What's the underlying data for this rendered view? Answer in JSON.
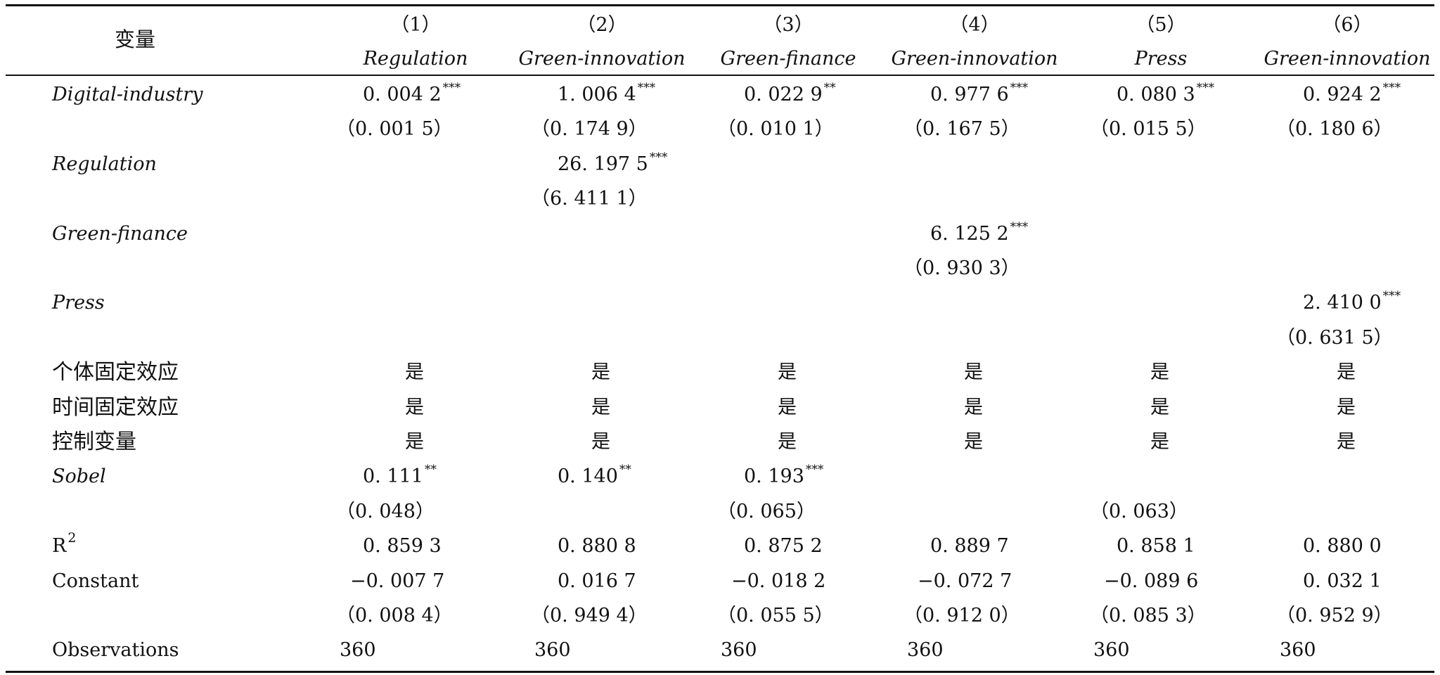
{
  "header": {
    "variable_label": "变量",
    "columns": [
      {
        "num": "（1）",
        "name": "Regulation"
      },
      {
        "num": "（2）",
        "name": "Green-innovation"
      },
      {
        "num": "（3）",
        "name": "Green-finance"
      },
      {
        "num": "（4）",
        "name": "Green-innovation"
      },
      {
        "num": "（5）",
        "name": "Press"
      },
      {
        "num": "（6）",
        "name": "Green-innovation"
      }
    ]
  },
  "rows": [
    {
      "label": "Digital-industry",
      "italic": true,
      "cells": [
        {
          "v": "0. 004 2",
          "s": "***"
        },
        {
          "v": "1. 006 4",
          "s": "***"
        },
        {
          "v": "0. 022 9",
          "s": "**"
        },
        {
          "v": "0. 977 6",
          "s": "***"
        },
        {
          "v": "0. 080 3",
          "s": "***"
        },
        {
          "v": "0. 924 2",
          "s": "***"
        }
      ]
    },
    {
      "label": "",
      "cells": [
        {
          "v": "（0. 001 5）"
        },
        {
          "v": "（0. 174 9）"
        },
        {
          "v": "（0. 010 1）"
        },
        {
          "v": "（0. 167 5）"
        },
        {
          "v": "（0. 015 5）"
        },
        {
          "v": "（0. 180 6）"
        }
      ]
    },
    {
      "label": "Regulation",
      "italic": true,
      "cells": [
        {
          "v": ""
        },
        {
          "v": "26. 197 5",
          "s": "***"
        },
        {
          "v": ""
        },
        {
          "v": ""
        },
        {
          "v": ""
        },
        {
          "v": ""
        }
      ]
    },
    {
      "label": "",
      "cells": [
        {
          "v": ""
        },
        {
          "v": "（6. 411 1）"
        },
        {
          "v": ""
        },
        {
          "v": ""
        },
        {
          "v": ""
        },
        {
          "v": ""
        }
      ]
    },
    {
      "label": "Green-finance",
      "italic": true,
      "cells": [
        {
          "v": ""
        },
        {
          "v": ""
        },
        {
          "v": ""
        },
        {
          "v": "6. 125 2",
          "s": "***"
        },
        {
          "v": ""
        },
        {
          "v": ""
        }
      ]
    },
    {
      "label": "",
      "cells": [
        {
          "v": ""
        },
        {
          "v": ""
        },
        {
          "v": ""
        },
        {
          "v": "（0. 930 3）"
        },
        {
          "v": ""
        },
        {
          "v": ""
        }
      ]
    },
    {
      "label": "Press",
      "italic": true,
      "cells": [
        {
          "v": ""
        },
        {
          "v": ""
        },
        {
          "v": ""
        },
        {
          "v": ""
        },
        {
          "v": ""
        },
        {
          "v": "2. 410 0",
          "s": "***"
        }
      ]
    },
    {
      "label": "",
      "cells": [
        {
          "v": ""
        },
        {
          "v": ""
        },
        {
          "v": ""
        },
        {
          "v": ""
        },
        {
          "v": ""
        },
        {
          "v": "（0. 631 5）"
        }
      ]
    },
    {
      "label": "个体固定效应",
      "cn": true,
      "cells": [
        {
          "v": "是"
        },
        {
          "v": "是"
        },
        {
          "v": "是"
        },
        {
          "v": "是"
        },
        {
          "v": "是"
        },
        {
          "v": "是"
        }
      ]
    },
    {
      "label": "时间固定效应",
      "cn": true,
      "cells": [
        {
          "v": "是"
        },
        {
          "v": "是"
        },
        {
          "v": "是"
        },
        {
          "v": "是"
        },
        {
          "v": "是"
        },
        {
          "v": "是"
        }
      ]
    },
    {
      "label": "控制变量",
      "cn": true,
      "cells": [
        {
          "v": "是"
        },
        {
          "v": "是"
        },
        {
          "v": "是"
        },
        {
          "v": "是"
        },
        {
          "v": "是"
        },
        {
          "v": "是"
        }
      ]
    },
    {
      "label": "Sobel",
      "italic": true,
      "cells": [
        {
          "v": "0. 111",
          "s": "**"
        },
        {
          "v": "0. 140",
          "s": "**"
        },
        {
          "v": "0. 193",
          "s": "***"
        },
        {
          "v": ""
        },
        {
          "v": ""
        },
        {
          "v": ""
        }
      ]
    },
    {
      "label": "",
      "cells": [
        {
          "v": "（0. 048）"
        },
        {
          "v": ""
        },
        {
          "v": "（0. 065）"
        },
        {
          "v": ""
        },
        {
          "v": "（0. 063）"
        },
        {
          "v": ""
        }
      ]
    },
    {
      "label": "R",
      "label_sup": "2",
      "cells": [
        {
          "v": "0. 859 3"
        },
        {
          "v": "0. 880 8"
        },
        {
          "v": "0. 875 2"
        },
        {
          "v": "0. 889 7"
        },
        {
          "v": "0. 858 1"
        },
        {
          "v": "0. 880 0"
        }
      ]
    },
    {
      "label": "Constant",
      "cells": [
        {
          "v": "−0. 007 7"
        },
        {
          "v": "0. 016 7"
        },
        {
          "v": "−0. 018 2"
        },
        {
          "v": "−0. 072 7"
        },
        {
          "v": "−0. 089 6"
        },
        {
          "v": "0. 032 1"
        }
      ]
    },
    {
      "label": "",
      "cells": [
        {
          "v": "（0. 008 4）"
        },
        {
          "v": "（0. 949 4）"
        },
        {
          "v": "（0. 055 5）"
        },
        {
          "v": "（0. 912 0）"
        },
        {
          "v": "（0. 085 3）"
        },
        {
          "v": "（0. 952 9）"
        }
      ]
    },
    {
      "label": "Observations",
      "cells": [
        {
          "v": "360"
        },
        {
          "v": "360"
        },
        {
          "v": "360"
        },
        {
          "v": "360"
        },
        {
          "v": "360"
        },
        {
          "v": "360"
        }
      ]
    }
  ]
}
